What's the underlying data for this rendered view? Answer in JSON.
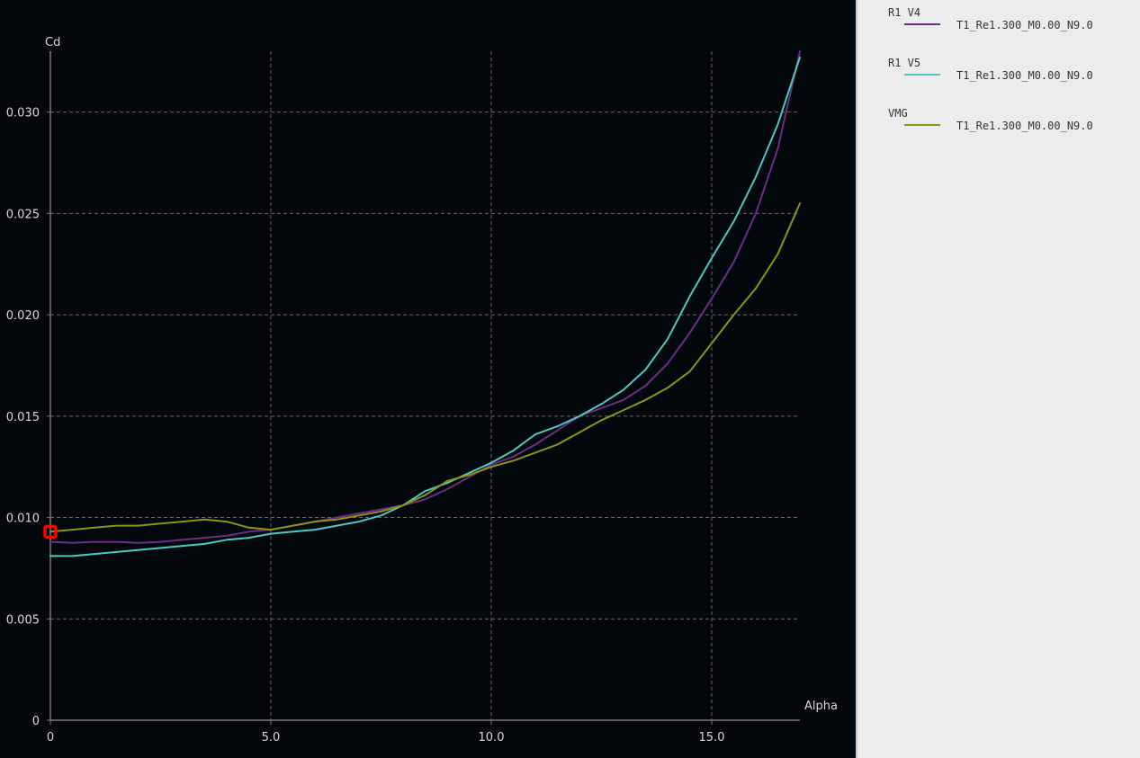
{
  "chart_data": {
    "type": "line",
    "xlabel": "Alpha",
    "ylabel": "Cd",
    "xlim": [
      0,
      17
    ],
    "ylim": [
      0,
      0.033
    ],
    "x_ticks": [
      "0",
      "5.0",
      "10.0",
      "15.0"
    ],
    "x_tick_values": [
      0,
      5,
      10,
      15
    ],
    "y_ticks": [
      "0",
      "0.005",
      "0.010",
      "0.015",
      "0.020",
      "0.025",
      "0.030"
    ],
    "y_tick_values": [
      0,
      0.005,
      0.01,
      0.015,
      0.02,
      0.025,
      0.03
    ],
    "grid": true,
    "legend_position": "right-panel",
    "series": [
      {
        "name": "R1 V4",
        "label": "T1_Re1.300_M0.00_N9.0",
        "color": "#6b2d86",
        "x": [
          0,
          0.5,
          1,
          1.5,
          2,
          2.5,
          3,
          3.5,
          4,
          4.5,
          5,
          5.5,
          6,
          6.5,
          7,
          7.5,
          8,
          8.5,
          9,
          9.5,
          10,
          10.5,
          11,
          11.5,
          12,
          12.5,
          13,
          13.5,
          14,
          14.5,
          15,
          15.5,
          16,
          16.5,
          17
        ],
        "y": [
          0.0088,
          0.00875,
          0.0088,
          0.0088,
          0.00875,
          0.0088,
          0.0089,
          0.009,
          0.0091,
          0.0093,
          0.0094,
          0.0096,
          0.0098,
          0.01,
          0.0102,
          0.0104,
          0.0106,
          0.0109,
          0.0114,
          0.012,
          0.0126,
          0.013,
          0.0136,
          0.0143,
          0.015,
          0.0154,
          0.0158,
          0.0165,
          0.0176,
          0.0191,
          0.0208,
          0.0226,
          0.025,
          0.0282,
          0.033
        ]
      },
      {
        "name": "R1 V5",
        "label": "T1_Re1.300_M0.00_N9.0",
        "color": "#4ec9c0",
        "x": [
          0,
          0.5,
          1,
          1.5,
          2,
          2.5,
          3,
          3.5,
          4,
          4.5,
          5,
          5.5,
          6,
          6.5,
          7,
          7.5,
          8,
          8.5,
          9,
          9.5,
          10,
          10.5,
          11,
          11.5,
          12,
          12.5,
          13,
          13.5,
          14,
          14.5,
          15,
          15.5,
          16,
          16.5,
          17
        ],
        "y": [
          0.0081,
          0.0081,
          0.0082,
          0.0083,
          0.0084,
          0.0085,
          0.0086,
          0.0087,
          0.0089,
          0.009,
          0.0092,
          0.0093,
          0.0094,
          0.0096,
          0.0098,
          0.0101,
          0.0106,
          0.0113,
          0.0117,
          0.0122,
          0.0127,
          0.0133,
          0.0141,
          0.0145,
          0.015,
          0.0156,
          0.0163,
          0.0173,
          0.0188,
          0.0209,
          0.0228,
          0.0246,
          0.0268,
          0.0294,
          0.0327
        ]
      },
      {
        "name": "VMG",
        "label": "T1_Re1.300_M0.00_N9.0",
        "color": "#8c9414",
        "x": [
          0,
          0.5,
          1,
          1.5,
          2,
          2.5,
          3,
          3.5,
          4,
          4.5,
          5,
          5.5,
          6,
          6.5,
          7,
          7.5,
          8,
          8.5,
          9,
          9.5,
          10,
          10.5,
          11,
          11.5,
          12,
          12.5,
          13,
          13.5,
          14,
          14.5,
          15,
          15.5,
          16,
          16.5,
          17
        ],
        "y": [
          0.0093,
          0.0094,
          0.0095,
          0.0096,
          0.0096,
          0.0097,
          0.0098,
          0.0099,
          0.0098,
          0.0095,
          0.0094,
          0.0096,
          0.0098,
          0.0099,
          0.0101,
          0.0103,
          0.0106,
          0.0111,
          0.0118,
          0.0121,
          0.0125,
          0.0128,
          0.0132,
          0.0136,
          0.0142,
          0.0148,
          0.0153,
          0.0158,
          0.0164,
          0.0172,
          0.0186,
          0.02,
          0.0213,
          0.023,
          0.0255
        ]
      }
    ],
    "highlight_point": {
      "series": "VMG",
      "x": 0,
      "y": 0.0093,
      "color": "#ff0000"
    }
  },
  "colors": {
    "background": "#03080c",
    "axis": "#7a7a7a",
    "grid": "#808080",
    "text": "#d8d8d8",
    "legend_background": "#ececec"
  }
}
